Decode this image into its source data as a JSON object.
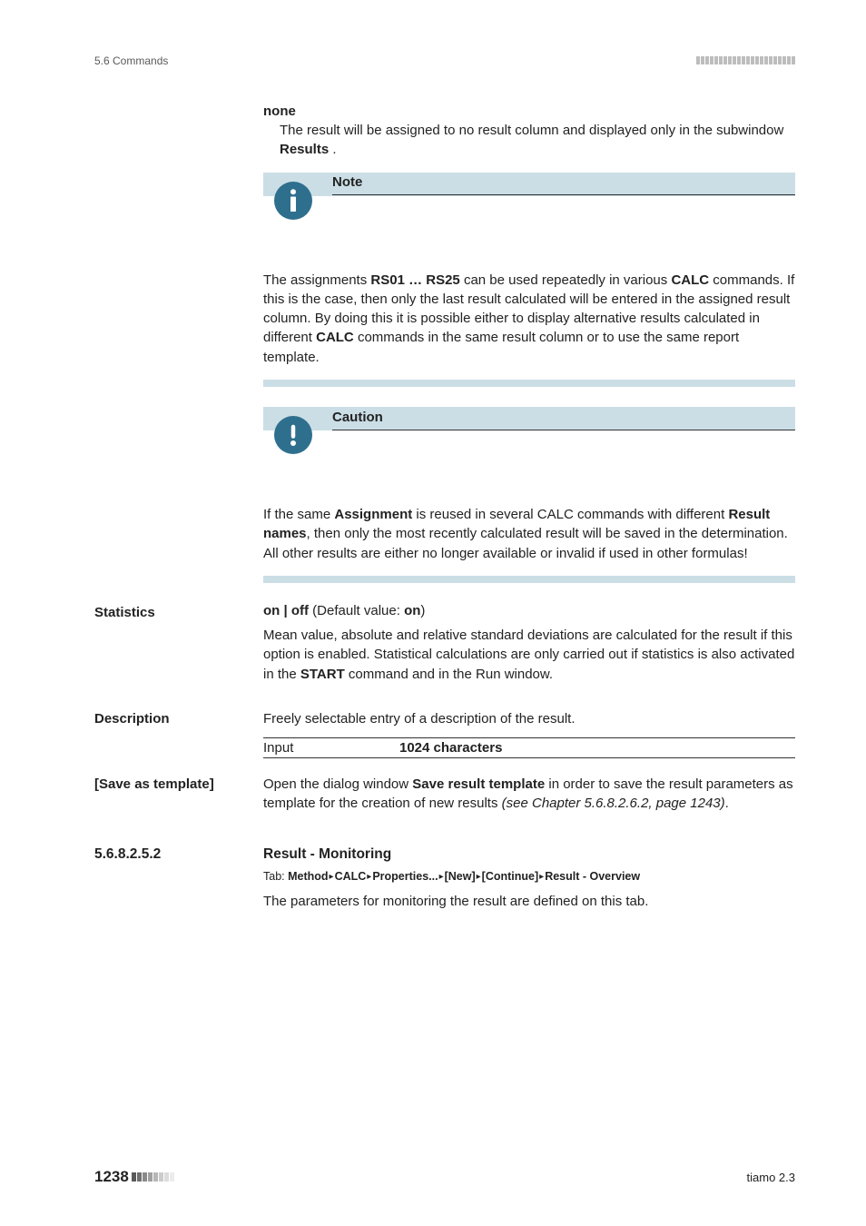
{
  "header": {
    "section": "5.6 Commands"
  },
  "term_none": {
    "label": "none",
    "text_a": "The result will be assigned to no result column and displayed only in the subwindow ",
    "text_b": "Results",
    "text_c": " ."
  },
  "note": {
    "title": "Note",
    "p1a": "The assignments ",
    "p1b": "RS01 … RS25",
    "p1c": " can be used repeatedly in various ",
    "p1d": "CALC",
    "p1e": " commands. If this is the case, then only the last result calculated will be entered in the assigned result column. By doing this it is possible either to display alternative results calculated in different ",
    "p1f": "CALC",
    "p1g": " commands in the same result column or to use the same report template."
  },
  "caution": {
    "title": "Caution",
    "p1a": "If the same ",
    "p1b": "Assignment",
    "p1c": " is reused in several CALC commands with different ",
    "p1d": "Result names",
    "p1e": ", then only the most recently calculated result will be saved in the determination. All other results are either no longer available or invalid if used in other formulas!"
  },
  "statistics": {
    "label": "Statistics",
    "default_a": "on | off",
    "default_b": " (Default value: ",
    "default_c": "on",
    "default_d": ")",
    "body_a": "Mean value, absolute and relative standard deviations are calculated for the result if this option is enabled. Statistical calculations are only carried out if statistics is also activated in the ",
    "body_b": "START",
    "body_c": " command and in the Run window."
  },
  "description": {
    "label": "Description",
    "body": "Freely selectable entry of a description of the result.",
    "input_label": "Input",
    "input_value": "1024 characters"
  },
  "save_tpl": {
    "label": "[Save as template]",
    "body_a": "Open the dialog window ",
    "body_b": "Save result template",
    "body_c": " in order to save the result parameters as template for the creation of new results ",
    "body_d": "(see Chapter 5.6.8.2.6.2, page 1243)",
    "body_e": "."
  },
  "subsection": {
    "num": "5.6.8.2.5.2",
    "title": "Result - Monitoring",
    "tab_prefix": "Tab: ",
    "crumbs": [
      "Method",
      "CALC",
      "Properties...",
      "[New]",
      "[Continue]",
      "Result - Overview"
    ],
    "intro": "The parameters for monitoring the result are defined on this tab."
  },
  "footer": {
    "page": "1238",
    "product": "tiamo 2.3"
  }
}
